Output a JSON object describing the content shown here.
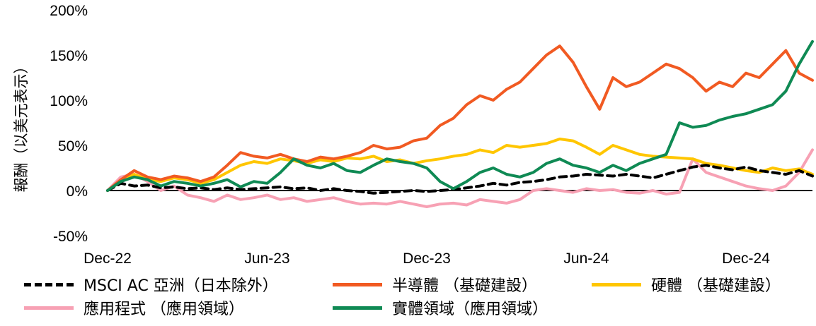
{
  "chart_data": {
    "type": "line",
    "title": "",
    "xlabel": "",
    "ylabel": "報酬（以美元表示）",
    "ylim": [
      -50,
      200
    ],
    "yticks": [
      -50,
      0,
      50,
      100,
      150,
      200
    ],
    "ytick_labels": [
      "-50%",
      "0%",
      "50%",
      "100%",
      "150%",
      "200%"
    ],
    "xticks": [
      0,
      6,
      12,
      18,
      24
    ],
    "xtick_labels": [
      "Dec-22",
      "Jun-23",
      "Dec-23",
      "Jun-24",
      "Dec-24"
    ],
    "x": [
      0,
      0.5,
      1,
      1.5,
      2,
      2.5,
      3,
      3.5,
      4,
      4.5,
      5,
      5.5,
      6,
      6.5,
      7,
      7.5,
      8,
      8.5,
      9,
      9.5,
      10,
      10.5,
      11,
      11.5,
      12,
      12.5,
      13,
      13.5,
      14,
      14.5,
      15,
      15.5,
      16,
      16.5,
      17,
      17.5,
      18,
      18.5,
      19,
      19.5,
      20,
      20.5,
      21,
      21.5,
      22,
      22.5,
      23,
      23.5,
      24,
      24.5,
      25,
      25.5,
      26,
      26.5
    ],
    "series": [
      {
        "name": "MSCI AC 亞洲（日本除外）",
        "color": "#000000",
        "style": "dashed",
        "values": [
          0,
          8,
          5,
          6,
          3,
          4,
          2,
          3,
          1,
          3,
          1,
          2,
          3,
          4,
          2,
          3,
          0,
          2,
          0,
          -1,
          -3,
          -2,
          -1,
          0,
          -1,
          0,
          1,
          3,
          5,
          8,
          6,
          9,
          10,
          12,
          15,
          16,
          18,
          17,
          16,
          18,
          16,
          14,
          18,
          22,
          26,
          28,
          25,
          23,
          26,
          22,
          20,
          18,
          22,
          16
        ]
      },
      {
        "name": "半導體（基礎建設）",
        "color": "#f15a22",
        "style": "solid",
        "values": [
          0,
          12,
          22,
          15,
          12,
          16,
          14,
          10,
          15,
          28,
          42,
          38,
          36,
          40,
          35,
          32,
          37,
          35,
          38,
          42,
          50,
          46,
          48,
          55,
          58,
          72,
          80,
          95,
          105,
          100,
          112,
          120,
          135,
          150,
          160,
          142,
          115,
          90,
          125,
          115,
          120,
          130,
          140,
          135,
          125,
          110,
          120,
          115,
          130,
          125,
          140,
          155,
          130,
          122
        ]
      },
      {
        "name": "硬體（基礎建設）",
        "color": "#ffc600",
        "style": "solid",
        "values": [
          0,
          10,
          18,
          12,
          10,
          14,
          12,
          8,
          12,
          20,
          28,
          32,
          30,
          35,
          33,
          30,
          34,
          32,
          36,
          35,
          38,
          32,
          34,
          30,
          33,
          35,
          38,
          40,
          45,
          42,
          50,
          48,
          50,
          52,
          57,
          55,
          48,
          40,
          50,
          45,
          40,
          38,
          37,
          36,
          35,
          30,
          28,
          25,
          22,
          20,
          25,
          22,
          24,
          18
        ]
      },
      {
        "name": "應用程式（應用領域）",
        "color": "#f7a1b4",
        "style": "solid",
        "values": [
          0,
          15,
          18,
          10,
          0,
          5,
          -5,
          -8,
          -12,
          -5,
          -10,
          -8,
          -5,
          -10,
          -8,
          -12,
          -10,
          -8,
          -12,
          -15,
          -14,
          -15,
          -12,
          -15,
          -18,
          -15,
          -14,
          -16,
          -10,
          -12,
          -14,
          -10,
          0,
          2,
          0,
          -2,
          2,
          0,
          1,
          -2,
          -3,
          0,
          -4,
          -2,
          35,
          20,
          15,
          10,
          5,
          2,
          0,
          5,
          20,
          45
        ]
      },
      {
        "name": "實體領域（應用領域）",
        "color": "#0f8a54",
        "style": "solid",
        "values": [
          0,
          10,
          15,
          12,
          5,
          10,
          8,
          5,
          8,
          12,
          4,
          10,
          8,
          20,
          35,
          28,
          25,
          30,
          22,
          20,
          28,
          35,
          32,
          30,
          25,
          10,
          2,
          10,
          20,
          25,
          18,
          15,
          20,
          30,
          35,
          28,
          25,
          20,
          28,
          22,
          30,
          35,
          40,
          75,
          70,
          72,
          78,
          82,
          85,
          90,
          95,
          110,
          140,
          165
        ]
      }
    ]
  },
  "legend": {
    "items": [
      "MSCI AC 亞洲（日本除外）",
      "半導體 （基礎建設）",
      "硬體 （基礎建設）",
      "應用程式 （應用領域）",
      "實體領域（應用領域）"
    ]
  },
  "colors": {
    "msci": "#000000",
    "semis": "#f15a22",
    "hardware": "#ffc600",
    "software": "#f7a1b4",
    "physical": "#0f8a54"
  }
}
